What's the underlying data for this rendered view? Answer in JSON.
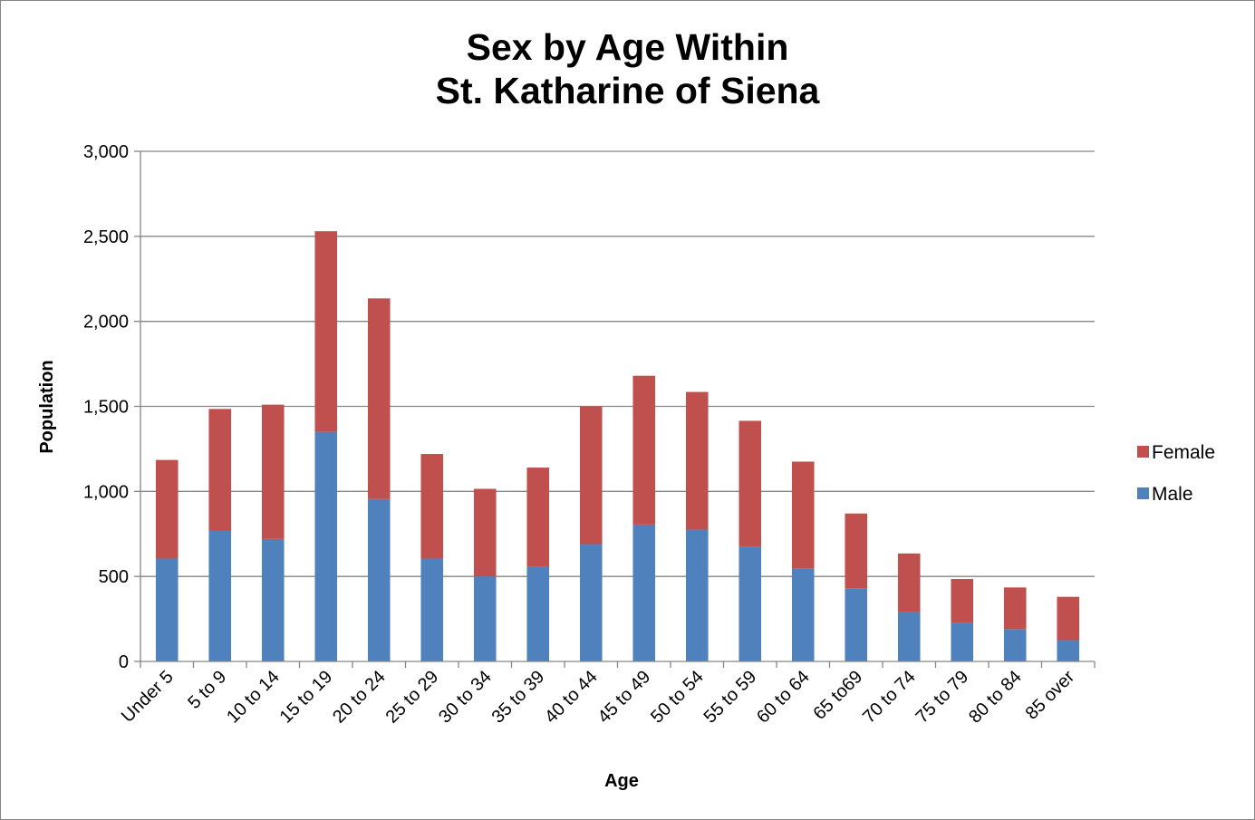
{
  "chart_data": {
    "type": "bar",
    "stacked": true,
    "title": [
      "Sex by Age Within",
      "St. Katharine of Siena"
    ],
    "xlabel": "Age",
    "ylabel": "Population",
    "ylim": [
      0,
      3000
    ],
    "yticks": [
      0,
      500,
      1000,
      1500,
      2000,
      2500,
      3000
    ],
    "ytick_labels": [
      "0",
      "500",
      "1,000",
      "1,500",
      "2,000",
      "2,500",
      "3,000"
    ],
    "grid": true,
    "legend_position": "right",
    "categories": [
      "Under 5",
      "5 to 9",
      "10 to 14",
      "15 to 19",
      "20 to 24",
      "25 to 29",
      "30 to 34",
      "35 to 39",
      "40 to 44",
      "45 to 49",
      "50 to 54",
      "55 to 59",
      "60 to 64",
      "65 to69",
      "70 to 74",
      "75 to 79",
      "80 to 84",
      "85 over"
    ],
    "series": [
      {
        "name": "Male",
        "color": "#4f81bd",
        "values": [
          605,
          770,
          720,
          1350,
          955,
          605,
          500,
          555,
          690,
          805,
          775,
          675,
          545,
          430,
          290,
          225,
          190,
          125
        ]
      },
      {
        "name": "Female",
        "color": "#c0504d",
        "values": [
          580,
          715,
          790,
          1180,
          1180,
          615,
          515,
          585,
          810,
          875,
          810,
          740,
          630,
          440,
          345,
          260,
          245,
          255
        ]
      }
    ],
    "legend_order": [
      "Female",
      "Male"
    ]
  }
}
